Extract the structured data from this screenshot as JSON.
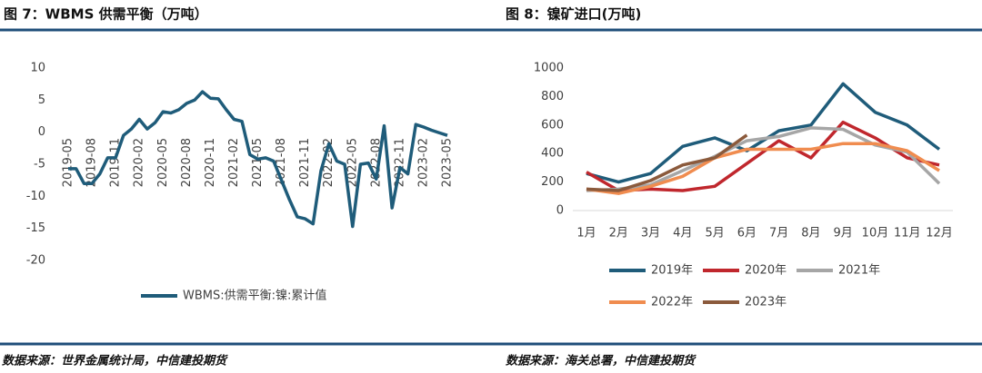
{
  "chart_data": [
    {
      "type": "line",
      "title": "图 7：WBMS 供需平衡（万吨）",
      "source": "数据来源：世界金属统计局，中信建投期货",
      "categories": [
        "2019-05",
        null,
        null,
        "2019-08",
        null,
        null,
        "2019-11",
        null,
        null,
        "2020-02",
        null,
        null,
        "2020-05",
        null,
        null,
        "2020-08",
        null,
        null,
        "2020-11",
        null,
        null,
        "2021-02",
        null,
        null,
        "2021-05",
        null,
        null,
        "2021-08",
        null,
        null,
        "2021-11",
        null,
        null,
        "2022-02",
        null,
        null,
        "2022-05",
        null,
        null,
        "2022-08",
        null,
        null,
        "2022-11",
        null,
        null,
        "2023-02",
        null,
        null,
        "2023-05"
      ],
      "series": [
        {
          "name": "WBMS:供需平衡:镍:累计值",
          "color": "#1f5c7a",
          "values": [
            -5.7,
            -5.7,
            -8,
            -8,
            -6.5,
            -4,
            -4,
            -0.5,
            0.5,
            2,
            0.5,
            1.5,
            3.2,
            3,
            3.5,
            4.5,
            5,
            6.3,
            5.3,
            5.2,
            3.5,
            2,
            1.7,
            -3.5,
            -4.2,
            -4,
            -4.5,
            -7.5,
            -10.5,
            -13.2,
            -13.5,
            -14.3,
            -6,
            -1.8,
            -4.5,
            -5,
            -14.7,
            -5,
            -4.8,
            -7.3,
            1,
            -11.8,
            -5.5,
            -6.5,
            1.2,
            0.8,
            0.3,
            -0.1,
            -0.5
          ]
        }
      ],
      "ylim": [
        -20,
        10
      ],
      "yticks": [
        -20,
        -15,
        -10,
        -5,
        0,
        5,
        10
      ],
      "grid": false,
      "legend": "bottom"
    },
    {
      "type": "line",
      "title": "图 8：镍矿进口(万吨)",
      "source": "数据来源：海关总署，中信建投期货",
      "categories": [
        "1月",
        "2月",
        "3月",
        "4月",
        "5月",
        "6月",
        "7月",
        "8月",
        "9月",
        "10月",
        "11月",
        "12月"
      ],
      "series": [
        {
          "name": "2019年",
          "color": "#1f5c7a",
          "values": [
            260,
            200,
            260,
            450,
            510,
            420,
            560,
            600,
            890,
            690,
            600,
            430
          ]
        },
        {
          "name": "2020年",
          "color": "#c0272d",
          "values": [
            270,
            140,
            150,
            140,
            170,
            330,
            490,
            370,
            620,
            510,
            370,
            320
          ]
        },
        {
          "name": "2021年",
          "color": "#a6a6a6",
          "values": [
            140,
            150,
            180,
            280,
            380,
            490,
            520,
            580,
            570,
            460,
            410,
            190
          ]
        },
        {
          "name": "2022年",
          "color": "#f08c4f",
          "values": [
            150,
            120,
            170,
            240,
            370,
            430,
            430,
            430,
            470,
            470,
            420,
            280
          ]
        },
        {
          "name": "2023年",
          "color": "#8b5a3c",
          "values": [
            150,
            140,
            210,
            320,
            370,
            530,
            null,
            null,
            null,
            null,
            null,
            null
          ]
        }
      ],
      "ylim": [
        0,
        1000
      ],
      "yticks": [
        0,
        200,
        400,
        600,
        800,
        1000
      ],
      "grid": false,
      "legend": "bottom"
    }
  ]
}
